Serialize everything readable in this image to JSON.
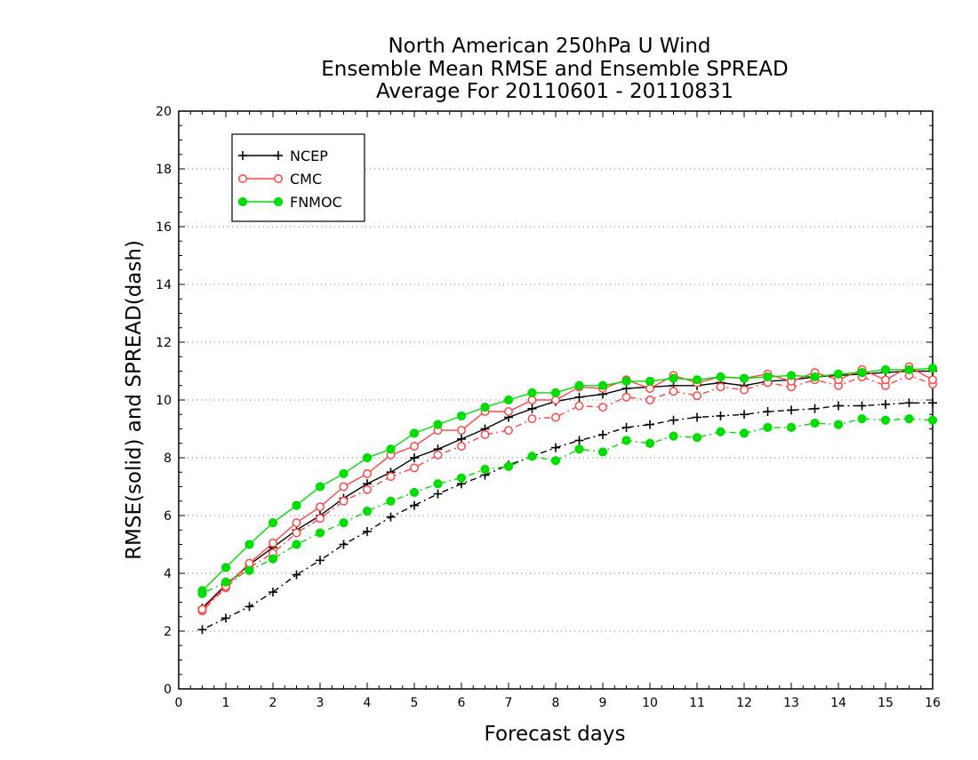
{
  "chart_data": {
    "type": "line",
    "title": [
      "North American 250hPa U Wind",
      "Ensemble Mean RMSE and Ensemble SPREAD",
      "Average For 20110601 - 20110831"
    ],
    "xlabel": "Forecast days",
    "ylabel": "RMSE(solid) and SPREAD(dash)",
    "xlim": [
      0,
      16
    ],
    "ylim": [
      0,
      20
    ],
    "xticks": [
      0,
      1,
      2,
      3,
      4,
      5,
      6,
      7,
      8,
      9,
      10,
      11,
      12,
      13,
      14,
      15,
      16
    ],
    "yticks": [
      0,
      2,
      4,
      6,
      8,
      10,
      12,
      14,
      16,
      18,
      20
    ],
    "grid": "horizontal dotted",
    "legend_position": "top-left",
    "x": [
      0.5,
      1,
      1.5,
      2,
      2.5,
      3,
      3.5,
      4,
      4.5,
      5,
      5.5,
      6,
      6.5,
      7,
      7.5,
      8,
      8.5,
      9,
      9.5,
      10,
      10.5,
      11,
      11.5,
      12,
      12.5,
      13,
      13.5,
      14,
      14.5,
      15,
      15.5,
      16
    ],
    "series": [
      {
        "name": "NCEP",
        "color": "#000000",
        "marker": "plus",
        "rmse": [
          2.8,
          3.6,
          4.3,
          4.9,
          5.5,
          6.0,
          6.6,
          7.1,
          7.5,
          8.0,
          8.3,
          8.65,
          9.0,
          9.4,
          9.7,
          9.95,
          10.1,
          10.2,
          10.4,
          10.45,
          10.5,
          10.5,
          10.6,
          10.5,
          10.65,
          10.7,
          10.8,
          10.85,
          10.9,
          10.95,
          11.0,
          11.0
        ],
        "spread": [
          2.05,
          2.45,
          2.85,
          3.35,
          3.95,
          4.45,
          5.0,
          5.45,
          5.95,
          6.35,
          6.75,
          7.1,
          7.4,
          7.75,
          8.05,
          8.35,
          8.6,
          8.8,
          9.05,
          9.15,
          9.3,
          9.4,
          9.45,
          9.5,
          9.6,
          9.65,
          9.7,
          9.8,
          9.8,
          9.85,
          9.9,
          9.9
        ]
      },
      {
        "name": "CMC",
        "color": "#ff4444",
        "marker": "circle-open",
        "rmse": [
          2.75,
          3.55,
          4.35,
          5.05,
          5.75,
          6.3,
          7.0,
          7.45,
          8.1,
          8.4,
          8.95,
          8.95,
          9.6,
          9.6,
          10.0,
          10.0,
          10.45,
          10.4,
          10.7,
          10.4,
          10.85,
          10.6,
          10.8,
          10.75,
          10.9,
          10.65,
          10.95,
          10.7,
          11.05,
          10.7,
          11.15,
          10.7
        ],
        "spread": [
          2.7,
          3.5,
          4.2,
          4.7,
          5.4,
          5.9,
          6.5,
          6.9,
          7.35,
          7.65,
          8.1,
          8.4,
          8.8,
          8.95,
          9.35,
          9.4,
          9.8,
          9.75,
          10.1,
          10.0,
          10.3,
          10.15,
          10.45,
          10.35,
          10.6,
          10.45,
          10.7,
          10.5,
          10.8,
          10.5,
          10.85,
          10.55
        ]
      },
      {
        "name": "FNMOC",
        "color": "#00dd00",
        "marker": "circle-filled",
        "rmse": [
          3.4,
          4.2,
          5.0,
          5.75,
          6.35,
          7.0,
          7.45,
          8.0,
          8.3,
          8.85,
          9.15,
          9.45,
          9.75,
          10.0,
          10.25,
          10.25,
          10.5,
          10.5,
          10.65,
          10.65,
          10.75,
          10.7,
          10.8,
          10.75,
          10.8,
          10.85,
          10.8,
          10.9,
          10.95,
          11.05,
          11.05,
          11.1
        ],
        "spread": [
          3.3,
          3.7,
          4.1,
          4.5,
          5.0,
          5.4,
          5.75,
          6.15,
          6.5,
          6.8,
          7.1,
          7.3,
          7.6,
          7.7,
          8.05,
          7.9,
          8.3,
          8.2,
          8.6,
          8.5,
          8.75,
          8.7,
          8.9,
          8.85,
          9.05,
          9.05,
          9.2,
          9.15,
          9.35,
          9.3,
          9.35,
          9.3
        ]
      }
    ]
  }
}
